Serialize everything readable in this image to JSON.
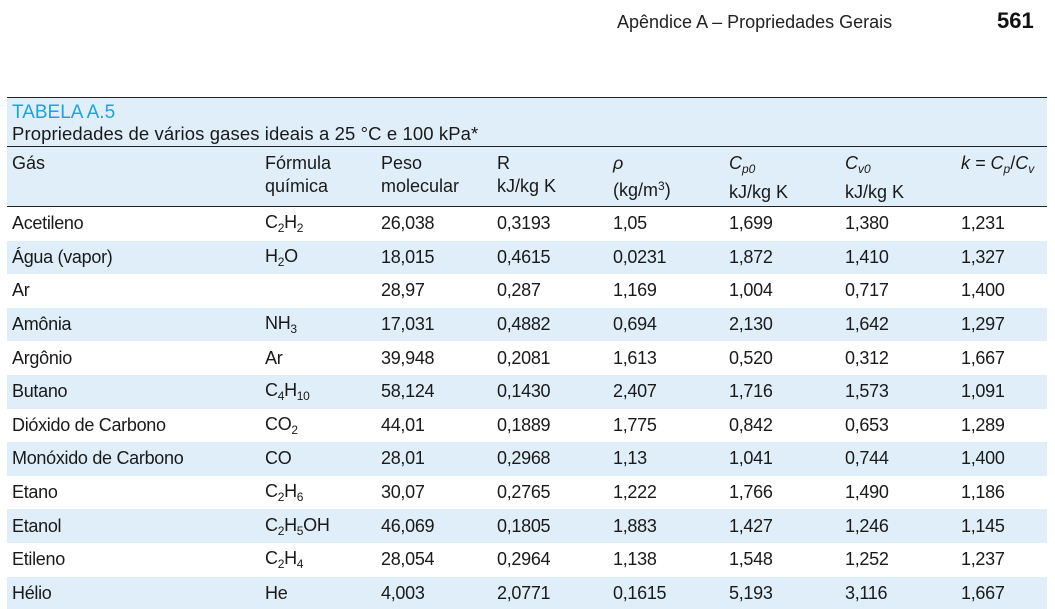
{
  "running_head": {
    "text": "Apêndice A – Propriedades Gerais",
    "page_number": "561"
  },
  "table": {
    "label": "TABELA A.5",
    "title": "Propriedades de vários gases ideais a 25 °C e 100 kPa*",
    "columns": {
      "gas": "Gás",
      "formula_line1": "Fórmula",
      "formula_line2": "química",
      "weight_line1": "Peso",
      "weight_line2": "molecular",
      "r_line1": "R",
      "r_line2": "kJ/kg K",
      "rho_symbol": "ρ",
      "rho_unit_pre": "(kg/m",
      "rho_unit_sup": "3",
      "rho_unit_post": ")",
      "cp0_symbol": "C",
      "cp0_sub": "p0",
      "cp0_unit": "kJ/kg K",
      "cv0_symbol": "C",
      "cv0_sub": "v0",
      "cv0_unit": "kJ/kg K",
      "k_text": "k = ",
      "k_cp": "C",
      "k_cp_sub": "p",
      "k_slash": "/",
      "k_cv": "C",
      "k_cv_sub": "v"
    },
    "rows": [
      {
        "gas": "Acetileno",
        "formula": [
          [
            "C",
            ""
          ],
          [
            "2",
            "sub"
          ],
          [
            "H",
            ""
          ],
          [
            "2",
            "sub"
          ]
        ],
        "mw": "26,038",
        "r": "0,3193",
        "rho": "1,05",
        "cp0": "1,699",
        "cv0": "1,380",
        "k": "1,231"
      },
      {
        "gas": "Água (vapor)",
        "formula": [
          [
            "H",
            ""
          ],
          [
            "2",
            "sub"
          ],
          [
            "O",
            ""
          ]
        ],
        "mw": "18,015",
        "r": "0,4615",
        "rho": "0,0231",
        "cp0": "1,872",
        "cv0": "1,410",
        "k": "1,327"
      },
      {
        "gas": "Ar",
        "formula": [],
        "mw": "28,97",
        "r": "0,287",
        "rho": "1,169",
        "cp0": "1,004",
        "cv0": "0,717",
        "k": "1,400"
      },
      {
        "gas": "Amônia",
        "formula": [
          [
            "NH",
            ""
          ],
          [
            "3",
            "sub"
          ]
        ],
        "mw": "17,031",
        "r": "0,4882",
        "rho": "0,694",
        "cp0": "2,130",
        "cv0": "1,642",
        "k": "1,297"
      },
      {
        "gas": "Argônio",
        "formula": [
          [
            "Ar",
            ""
          ]
        ],
        "mw": "39,948",
        "r": "0,2081",
        "rho": "1,613",
        "cp0": "0,520",
        "cv0": "0,312",
        "k": "1,667"
      },
      {
        "gas": "Butano",
        "formula": [
          [
            "C",
            ""
          ],
          [
            "4",
            "sub"
          ],
          [
            "H",
            ""
          ],
          [
            "10",
            "sub"
          ]
        ],
        "mw": "58,124",
        "r": "0,1430",
        "rho": "2,407",
        "cp0": "1,716",
        "cv0": "1,573",
        "k": "1,091"
      },
      {
        "gas": "Dióxido de Carbono",
        "formula": [
          [
            "CO",
            ""
          ],
          [
            "2",
            "sub"
          ]
        ],
        "mw": "44,01",
        "r": "0,1889",
        "rho": "1,775",
        "cp0": "0,842",
        "cv0": "0,653",
        "k": "1,289"
      },
      {
        "gas": "Monóxido de Carbono",
        "formula": [
          [
            "CO",
            ""
          ]
        ],
        "mw": "28,01",
        "r": "0,2968",
        "rho": "1,13",
        "cp0": "1,041",
        "cv0": "0,744",
        "k": "1,400"
      },
      {
        "gas": "Etano",
        "formula": [
          [
            "C",
            ""
          ],
          [
            "2",
            "sub"
          ],
          [
            "H",
            ""
          ],
          [
            "6",
            "sub"
          ]
        ],
        "mw": "30,07",
        "r": "0,2765",
        "rho": "1,222",
        "cp0": "1,766",
        "cv0": "1,490",
        "k": "1,186"
      },
      {
        "gas": "Etanol",
        "formula": [
          [
            "C",
            ""
          ],
          [
            "2",
            "sub"
          ],
          [
            "H",
            ""
          ],
          [
            "5",
            "sub"
          ],
          [
            "OH",
            ""
          ]
        ],
        "mw": "46,069",
        "r": "0,1805",
        "rho": "1,883",
        "cp0": "1,427",
        "cv0": "1,246",
        "k": "1,145"
      },
      {
        "gas": "Etileno",
        "formula": [
          [
            "C",
            ""
          ],
          [
            "2",
            "sub"
          ],
          [
            "H",
            ""
          ],
          [
            "4",
            "sub"
          ]
        ],
        "mw": "28,054",
        "r": "0,2964",
        "rho": "1,138",
        "cp0": "1,548",
        "cv0": "1,252",
        "k": "1,237"
      },
      {
        "gas": "Hélio",
        "formula": [
          [
            "He",
            ""
          ]
        ],
        "mw": "4,003",
        "r": "2,0771",
        "rho": "0,1615",
        "cp0": "5,193",
        "cv0": "3,116",
        "k": "1,667"
      }
    ]
  },
  "colors": {
    "band": "#dfeef9",
    "label_accent": "#1ea3d6",
    "text": "#1a1a1a"
  }
}
